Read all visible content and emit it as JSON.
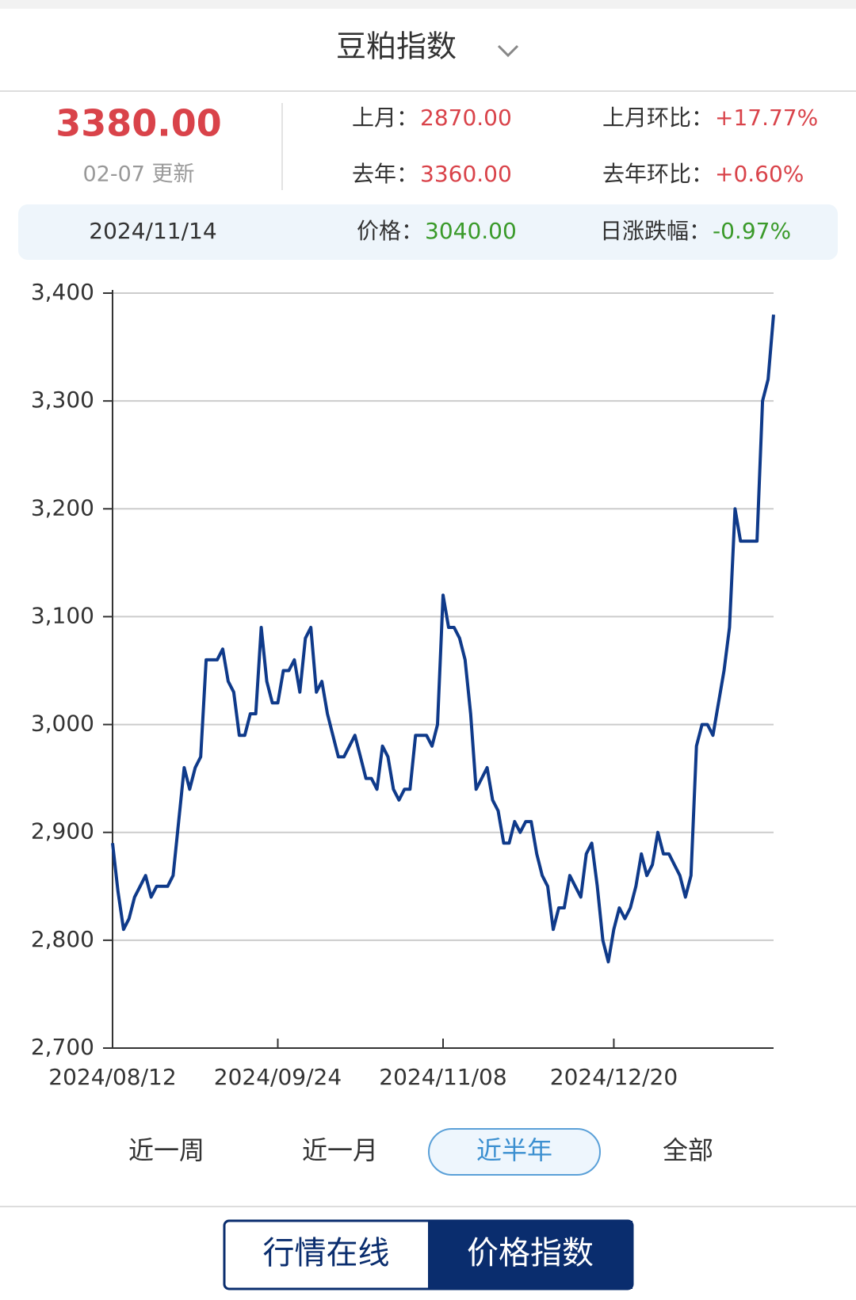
{
  "header": {
    "title": "豆粕指数"
  },
  "summary": {
    "price": "3380.00",
    "updated": "02-07 更新",
    "last_month_label": "上月：",
    "last_month": "2870.00",
    "mom_label": "上月环比：",
    "mom": "+17.77%",
    "last_year_label": "去年：",
    "last_year": "3360.00",
    "yoy_label": "去年环比：",
    "yoy": "+0.60%"
  },
  "tooltip": {
    "date": "2024/11/14",
    "price_label": "价格：",
    "price": "3040.00",
    "change_label": "日涨跌幅：",
    "change": "-0.97%"
  },
  "periods": [
    "近一周",
    "近一月",
    "近半年",
    "全部"
  ],
  "active_period": "近半年",
  "tabs": [
    "行情在线",
    "价格指数"
  ],
  "active_tab": "价格指数",
  "chart_data": {
    "type": "line",
    "color": "#0f3a8a",
    "grid": true,
    "values": [
      2890,
      2845,
      2810,
      2820,
      2840,
      2850,
      2860,
      2840,
      2850,
      2850,
      2850,
      2860,
      2910,
      2960,
      2940,
      2960,
      2970,
      3060,
      3060,
      3060,
      3070,
      3040,
      3030,
      2990,
      2990,
      3010,
      3010,
      3090,
      3040,
      3020,
      3020,
      3050,
      3050,
      3060,
      3030,
      3080,
      3090,
      3030,
      3040,
      3010,
      2990,
      2970,
      2970,
      2980,
      2990,
      2970,
      2950,
      2950,
      2940,
      2980,
      2970,
      2940,
      2930,
      2940,
      2940,
      2990,
      2990,
      2990,
      2980,
      3000,
      3120,
      3090,
      3090,
      3080,
      3060,
      3010,
      2940,
      2950,
      2960,
      2930,
      2920,
      2890,
      2890,
      2910,
      2900,
      2910,
      2910,
      2880,
      2860,
      2850,
      2810,
      2830,
      2830,
      2860,
      2850,
      2840,
      2880,
      2890,
      2850,
      2800,
      2780,
      2810,
      2830,
      2820,
      2830,
      2850,
      2880,
      2860,
      2870,
      2900,
      2880,
      2880,
      2870,
      2860,
      2840,
      2860,
      2980,
      3000,
      3000,
      2990,
      3020,
      3050,
      3090,
      3200,
      3170,
      3170,
      3170,
      3170,
      3300,
      3320,
      3380
    ],
    "xlim": [
      0,
      120
    ],
    "xticks": [
      {
        "value": 0,
        "label": "2024/08/12"
      },
      {
        "value": 30,
        "label": "2024/09/24"
      },
      {
        "value": 60,
        "label": "2024/11/08"
      },
      {
        "value": 91,
        "label": "2024/12/20"
      }
    ],
    "ylim": [
      2700,
      3400
    ],
    "yticks": [
      {
        "value": 2700,
        "label": "2,700"
      },
      {
        "value": 2800,
        "label": "2,800"
      },
      {
        "value": 2900,
        "label": "2,900"
      },
      {
        "value": 3000,
        "label": "3,000"
      },
      {
        "value": 3100,
        "label": "3,100"
      },
      {
        "value": 3200,
        "label": "3,200"
      },
      {
        "value": 3300,
        "label": "3,300"
      },
      {
        "value": 3400,
        "label": "3,400"
      }
    ]
  }
}
